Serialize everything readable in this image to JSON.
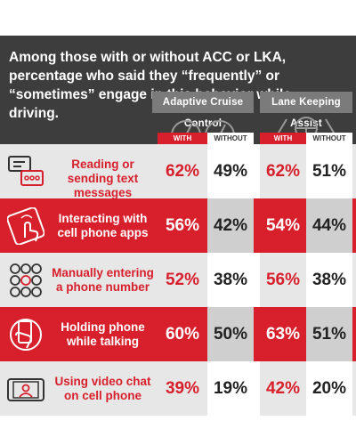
{
  "title": "Among those with or without ACC or LKA, percentage who said they “frequently” or “sometimes” engage in this behavior while driving.",
  "columns": {
    "acc": "Adaptive Cruise Control",
    "lka": "Lane Keeping Assist",
    "with": "WITH",
    "without": "WITHOUT"
  },
  "colors": {
    "accent": "#d8202c",
    "header": "#3d3d3d",
    "column_header": "#7b7b7b",
    "row_alt": "#e7e7e7"
  },
  "chart_data": {
    "type": "table",
    "title": "Among those with or without ACC or LKA, percentage who said they “frequently” or “sometimes” engage in this behavior while driving.",
    "column_groups": [
      "Adaptive Cruise Control",
      "Lane Keeping Assist"
    ],
    "subcolumns": [
      "WITH",
      "WITHOUT"
    ],
    "rows": [
      {
        "behavior": "Reading or sending text messages",
        "icon": "chat-bubbles-icon",
        "acc_with": "62%",
        "acc_without": "49%",
        "lka_with": "62%",
        "lka_without": "51%"
      },
      {
        "behavior": "Interacting with cell phone apps",
        "icon": "phone-tap-icon",
        "acc_with": "56%",
        "acc_without": "42%",
        "lka_with": "54%",
        "lka_without": "44%"
      },
      {
        "behavior": "Manually entering a phone number",
        "icon": "keypad-icon",
        "acc_with": "52%",
        "acc_without": "38%",
        "lka_with": "56%",
        "lka_without": "38%"
      },
      {
        "behavior": "Holding phone while talking",
        "icon": "phone-in-hand-icon",
        "acc_with": "60%",
        "acc_without": "50%",
        "lka_with": "63%",
        "lka_without": "51%"
      },
      {
        "behavior": "Using video chat on cell phone",
        "icon": "video-chat-icon",
        "acc_with": "39%",
        "acc_without": "19%",
        "lka_with": "42%",
        "lka_without": "20%"
      }
    ]
  }
}
